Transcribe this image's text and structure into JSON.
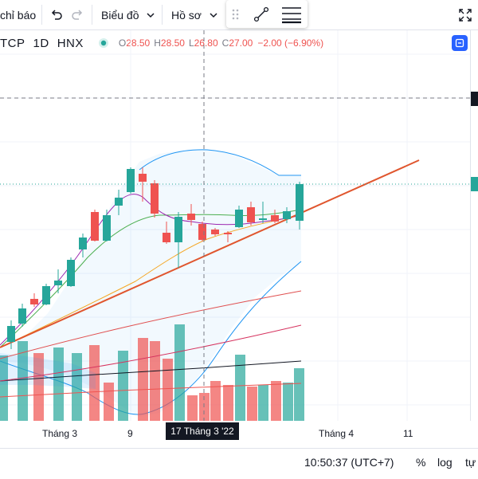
{
  "toolbar": {
    "indicators_label": "chỉ báo",
    "chart_menu_label": "Biểu đồ",
    "profile_menu_label": "Hồ sơ",
    "undo_icon": "undo-icon",
    "redo_icon": "redo-icon",
    "fullscreen_icon": "fullscreen-icon"
  },
  "legend": {
    "symbol": "TCP",
    "interval": "1D",
    "exchange": "HNX",
    "open_key": "O",
    "open": "28.50",
    "high_key": "H",
    "high": "28.50",
    "low_key": "L",
    "low": "26.80",
    "close_key": "C",
    "close": "27.00",
    "change": "−2.00 (−6.90%)"
  },
  "time_axis": {
    "labels": [
      "Tháng 3",
      "9",
      "Tháng 4",
      "11"
    ],
    "crosshair_label": "17 Tháng 3 '22"
  },
  "bottom_bar": {
    "time": "10:50:37 (UTC+7)",
    "percent": "%",
    "log": "log",
    "auto": "tự"
  },
  "colors": {
    "up": "#26a69a",
    "down": "#ef5350",
    "trendline": "#e0562e"
  }
}
